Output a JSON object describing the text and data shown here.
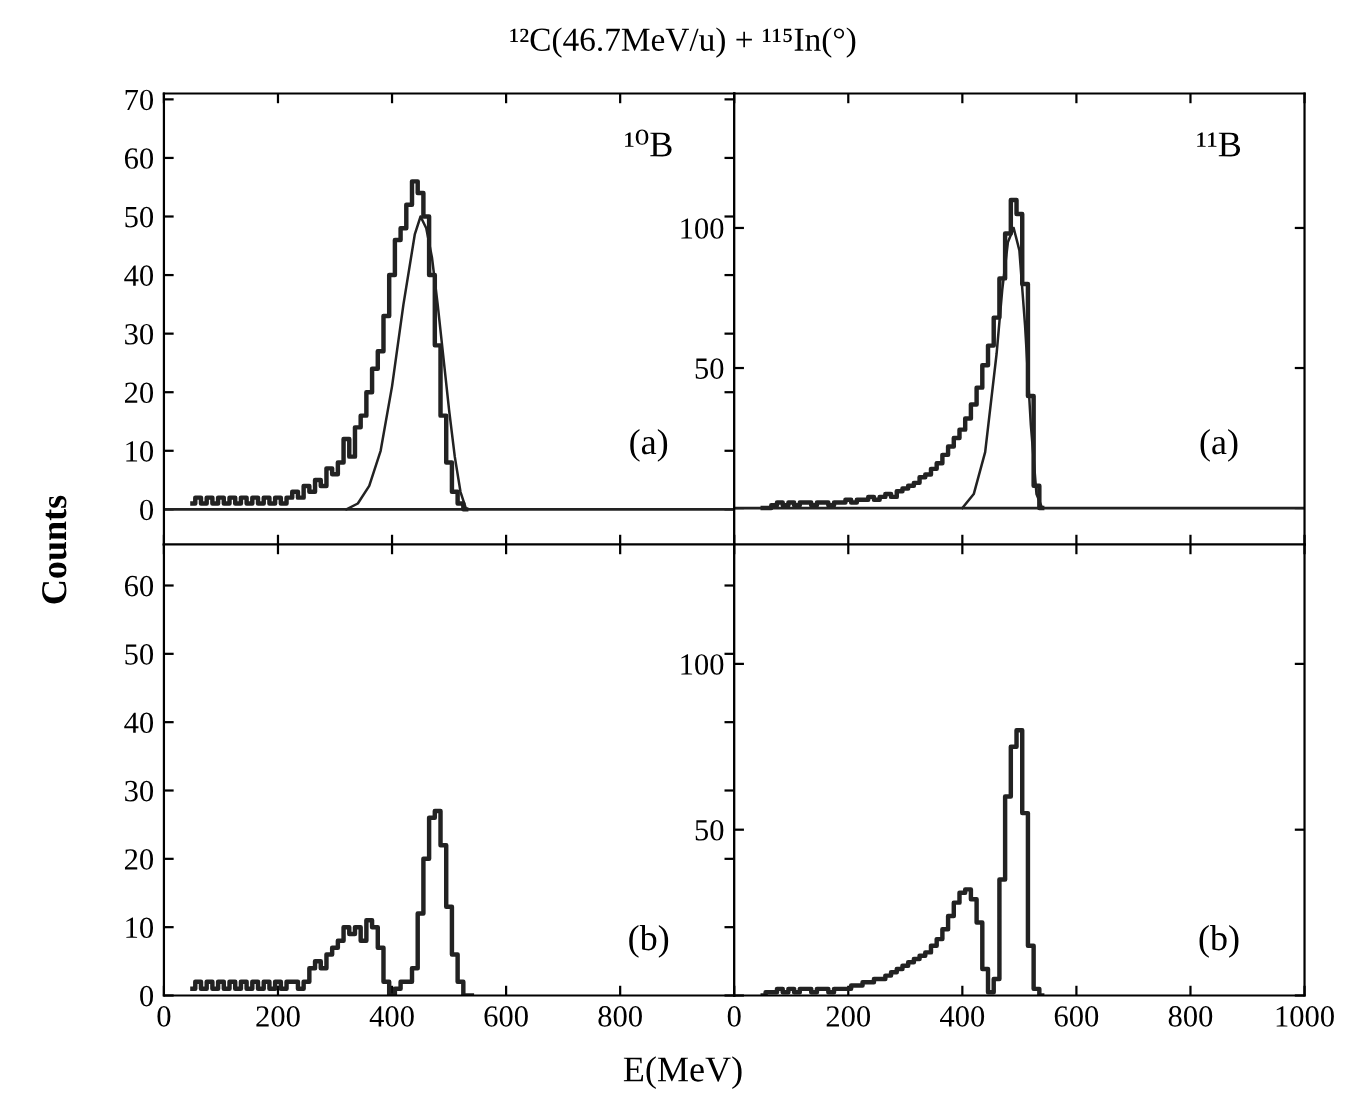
{
  "chart_data": [
    {
      "type": "step",
      "title": "¹²C(46.7MeV/u) + ¹¹⁵In(°)",
      "ylabel": "Counts",
      "annotations": [
        "¹⁰B",
        "(a)"
      ],
      "xlim": [
        0,
        1000
      ],
      "xticks": [
        0,
        200,
        400,
        600,
        800,
        {
          "value": 1000,
          "label": null
        }
      ],
      "ylim": [
        -6,
        71
      ],
      "yticks": [
        0,
        10,
        20,
        30,
        40,
        50,
        60,
        70
      ],
      "tick_labels": "y",
      "series": [
        {
          "type": "step",
          "color": "#222222",
          "x": [
            50,
            60,
            70,
            80,
            90,
            100,
            110,
            120,
            130,
            140,
            150,
            160,
            170,
            180,
            190,
            200,
            210,
            220,
            230,
            240,
            250,
            260,
            270,
            280,
            290,
            300,
            310,
            320,
            330,
            340,
            350,
            360,
            370,
            380,
            390,
            400,
            410,
            420,
            430,
            440,
            450,
            460,
            470,
            480,
            490,
            500,
            510,
            520,
            530
          ],
          "values": [
            1,
            2,
            1,
            2,
            1,
            2,
            1,
            2,
            1,
            2,
            1,
            2,
            1,
            2,
            1,
            2,
            1,
            2,
            3,
            2,
            4,
            3,
            5,
            4,
            7,
            6,
            8,
            12,
            9,
            14,
            16,
            20,
            24,
            27,
            33,
            40,
            46,
            48,
            52,
            56,
            54,
            50,
            40,
            28,
            16,
            8,
            3,
            1,
            0
          ]
        },
        {
          "type": "line",
          "color": "#222222",
          "x": [
            320,
            340,
            360,
            380,
            400,
            420,
            440,
            450,
            460,
            470,
            480,
            490,
            500,
            510,
            520,
            530
          ],
          "values": [
            0,
            1,
            4,
            10,
            21,
            35,
            47,
            50,
            48,
            43,
            35,
            26,
            17,
            9,
            3,
            0
          ]
        }
      ]
    },
    {
      "type": "step",
      "annotations": [
        "¹¹B",
        "(a)"
      ],
      "xlim": [
        0,
        1000
      ],
      "xticks": [
        0,
        200,
        400,
        600,
        800,
        1000
      ],
      "ylim": [
        -13,
        148
      ],
      "yticks": [
        {
          "value": 0,
          "label": null
        },
        50,
        100
      ],
      "tick_labels": "y",
      "series": [
        {
          "type": "step",
          "color": "#222222",
          "x": [
            50,
            60,
            70,
            80,
            90,
            100,
            110,
            120,
            130,
            140,
            150,
            160,
            170,
            180,
            190,
            200,
            210,
            220,
            230,
            240,
            250,
            260,
            270,
            280,
            290,
            300,
            310,
            320,
            330,
            340,
            350,
            360,
            370,
            380,
            390,
            400,
            410,
            420,
            430,
            440,
            450,
            460,
            470,
            480,
            490,
            500,
            510,
            520,
            530,
            540
          ],
          "values": [
            0,
            0,
            1,
            2,
            1,
            2,
            1,
            2,
            2,
            1,
            2,
            2,
            1,
            2,
            2,
            3,
            2,
            3,
            3,
            4,
            3,
            4,
            5,
            4,
            6,
            7,
            8,
            9,
            11,
            12,
            14,
            16,
            19,
            22,
            25,
            28,
            32,
            37,
            43,
            51,
            58,
            68,
            82,
            98,
            110,
            105,
            80,
            40,
            8,
            0
          ]
        },
        {
          "type": "line",
          "color": "#222222",
          "x": [
            400,
            420,
            440,
            460,
            470,
            480,
            490,
            500,
            510,
            520,
            530,
            540
          ],
          "values": [
            0,
            5,
            20,
            55,
            78,
            95,
            100,
            92,
            65,
            30,
            5,
            0
          ]
        }
      ]
    },
    {
      "type": "step",
      "xlabel": "E(MeV)",
      "annotations": [
        "(b)"
      ],
      "xlim": [
        0,
        1000
      ],
      "xticks": [
        0,
        200,
        400,
        600,
        800,
        {
          "value": 1000,
          "label": null
        }
      ],
      "ylim": [
        0,
        66
      ],
      "yticks": [
        0,
        10,
        20,
        30,
        40,
        50,
        60
      ],
      "series": [
        {
          "type": "step",
          "color": "#222222",
          "x": [
            50,
            60,
            70,
            80,
            90,
            100,
            110,
            120,
            130,
            140,
            150,
            160,
            170,
            180,
            190,
            200,
            210,
            220,
            230,
            240,
            250,
            260,
            270,
            280,
            290,
            300,
            310,
            320,
            330,
            340,
            350,
            360,
            370,
            380,
            390,
            400,
            410,
            420,
            430,
            440,
            450,
            460,
            470,
            480,
            490,
            500,
            510,
            520,
            530,
            540
          ],
          "values": [
            1,
            2,
            1,
            2,
            1,
            2,
            1,
            2,
            1,
            2,
            1,
            2,
            1,
            2,
            1,
            2,
            1,
            2,
            2,
            1,
            2,
            4,
            5,
            4,
            6,
            7,
            8,
            10,
            9,
            10,
            8,
            11,
            10,
            7,
            2,
            0,
            1,
            2,
            2,
            4,
            12,
            20,
            26,
            27,
            22,
            13,
            6,
            2,
            0,
            0
          ]
        }
      ]
    },
    {
      "type": "step",
      "annotations": [
        "(b)"
      ],
      "xlim": [
        0,
        1000
      ],
      "xticks": [
        0,
        200,
        400,
        600,
        800,
        1000
      ],
      "ylim": [
        0,
        136
      ],
      "yticks": [
        {
          "value": 0,
          "label": null
        },
        50,
        100
      ],
      "series": [
        {
          "type": "step",
          "color": "#222222",
          "x": [
            50,
            60,
            70,
            80,
            90,
            100,
            110,
            120,
            130,
            140,
            150,
            160,
            170,
            180,
            190,
            200,
            210,
            220,
            230,
            240,
            250,
            260,
            270,
            280,
            290,
            300,
            310,
            320,
            330,
            340,
            350,
            360,
            370,
            380,
            390,
            400,
            410,
            420,
            430,
            440,
            450,
            460,
            470,
            480,
            490,
            500,
            510,
            520,
            530,
            540
          ],
          "values": [
            0,
            1,
            1,
            2,
            1,
            2,
            1,
            2,
            2,
            1,
            2,
            2,
            1,
            2,
            2,
            2,
            3,
            3,
            4,
            4,
            5,
            5,
            6,
            7,
            8,
            9,
            10,
            11,
            12,
            13,
            15,
            17,
            20,
            24,
            28,
            31,
            32,
            29,
            22,
            8,
            1,
            5,
            35,
            60,
            75,
            80,
            55,
            15,
            2,
            0
          ]
        }
      ]
    }
  ]
}
